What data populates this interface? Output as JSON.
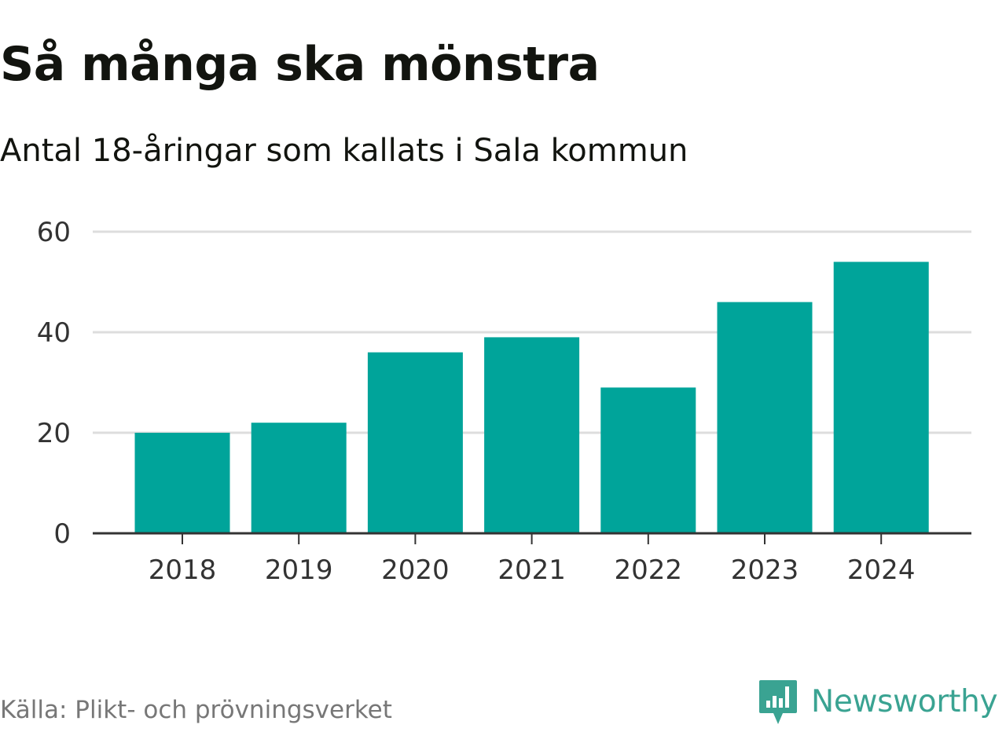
{
  "colors": {
    "bar": "#00a49a",
    "grid": "#dddddd",
    "axis": "#333333",
    "tick_text": "#333333",
    "brand": "#3aa392"
  },
  "chart_data": {
    "type": "bar",
    "title": "Så många ska mönstra",
    "subtitle": "Antal 18-åringar som kallats i Sala kommun",
    "categories": [
      "2018",
      "2019",
      "2020",
      "2021",
      "2022",
      "2023",
      "2024"
    ],
    "values": [
      20,
      22,
      36,
      39,
      29,
      46,
      54
    ],
    "xlabel": "",
    "ylabel": "",
    "ylim": [
      0,
      60
    ],
    "yticks": [
      0,
      20,
      40,
      60
    ],
    "grid": true,
    "legend": "none"
  },
  "footer": {
    "source": "Källa: Plikt- och prövningsverket",
    "brand_name": "Newsworthy",
    "brand_icon": "newsworthy-logo-icon"
  }
}
